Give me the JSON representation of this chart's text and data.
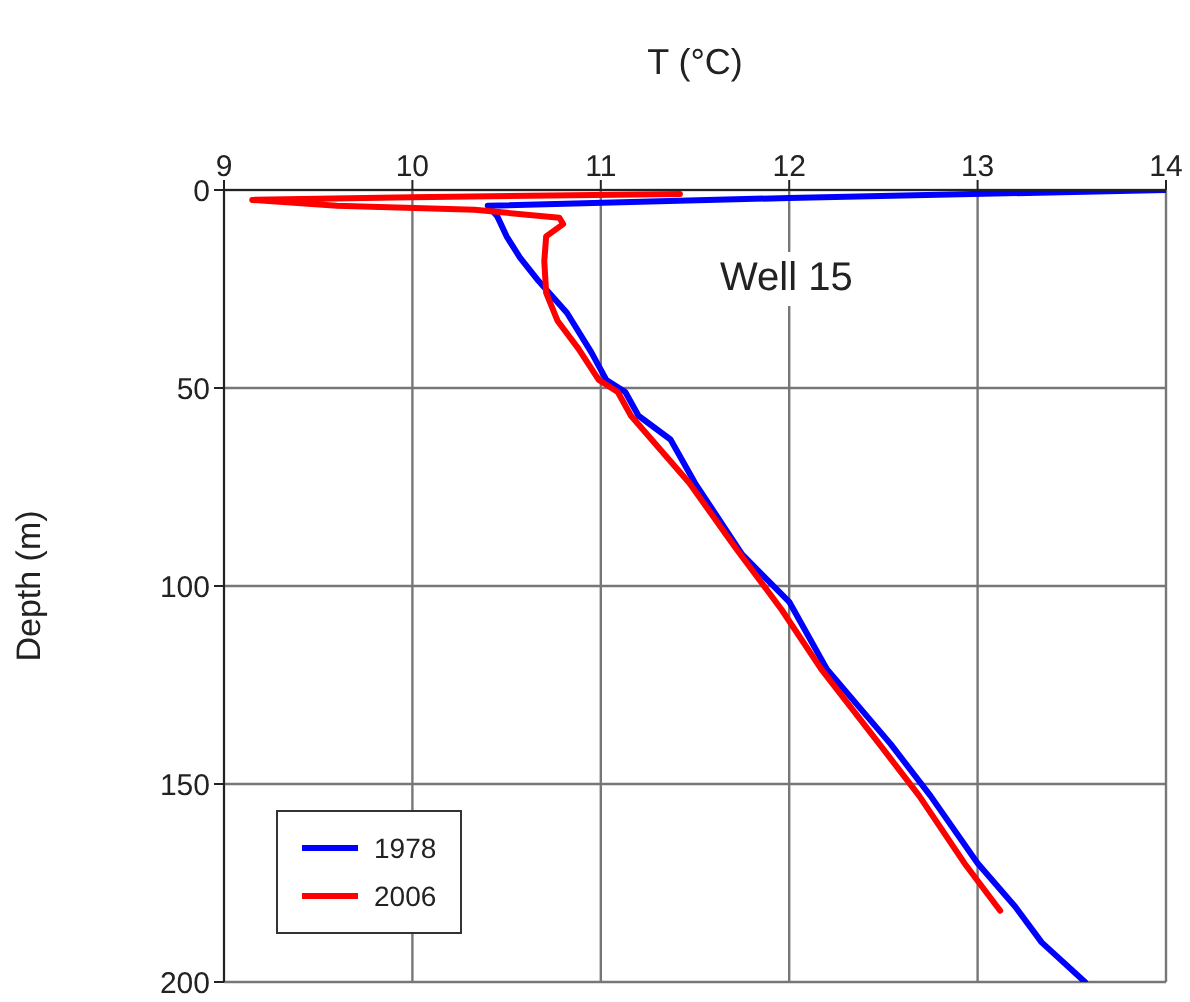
{
  "chart_data": {
    "type": "line",
    "xlabel": "T (°C)",
    "ylabel": "Depth (m)",
    "annotations": [
      "Well 15"
    ],
    "xlim": [
      9,
      14
    ],
    "xticks": [
      9,
      10,
      11,
      12,
      13,
      14
    ],
    "ylim": [
      200,
      0
    ],
    "yticks": [
      0,
      50,
      100,
      150,
      200
    ],
    "grid": true,
    "legend": "bottom left",
    "line_style": "solid",
    "marker": "none",
    "series": [
      {
        "name": "1978",
        "color": "#0000ff",
        "x": [
          14.0,
          12.0,
          10.4,
          10.45,
          10.5,
          10.57,
          10.67,
          10.82,
          10.95,
          11.03,
          11.13,
          11.2,
          11.37,
          11.5,
          11.75,
          12.0,
          12.2,
          12.54,
          12.75,
          13.0,
          13.2,
          13.34,
          13.57
        ],
        "values": [
          0,
          2,
          4,
          6.6,
          11.7,
          17,
          23,
          31,
          41,
          48,
          51,
          57,
          63,
          74,
          92,
          104,
          121,
          140,
          153,
          170,
          181,
          190,
          200
        ]
      },
      {
        "name": "2006",
        "color": "#ff0000",
        "x": [
          11.42,
          10.0,
          9.15,
          9.6,
          10.33,
          10.78,
          10.8,
          10.71,
          10.7,
          10.71,
          10.77,
          10.88,
          10.99,
          11.09,
          11.16,
          11.47,
          11.71,
          11.96,
          12.17,
          12.48,
          12.69,
          12.93,
          13.12
        ],
        "values": [
          1,
          1.8,
          2.5,
          4,
          5,
          7,
          8.6,
          11.7,
          18,
          26,
          33,
          40,
          48,
          51,
          57,
          74,
          90,
          106,
          121,
          140,
          153,
          170,
          182
        ]
      }
    ]
  }
}
